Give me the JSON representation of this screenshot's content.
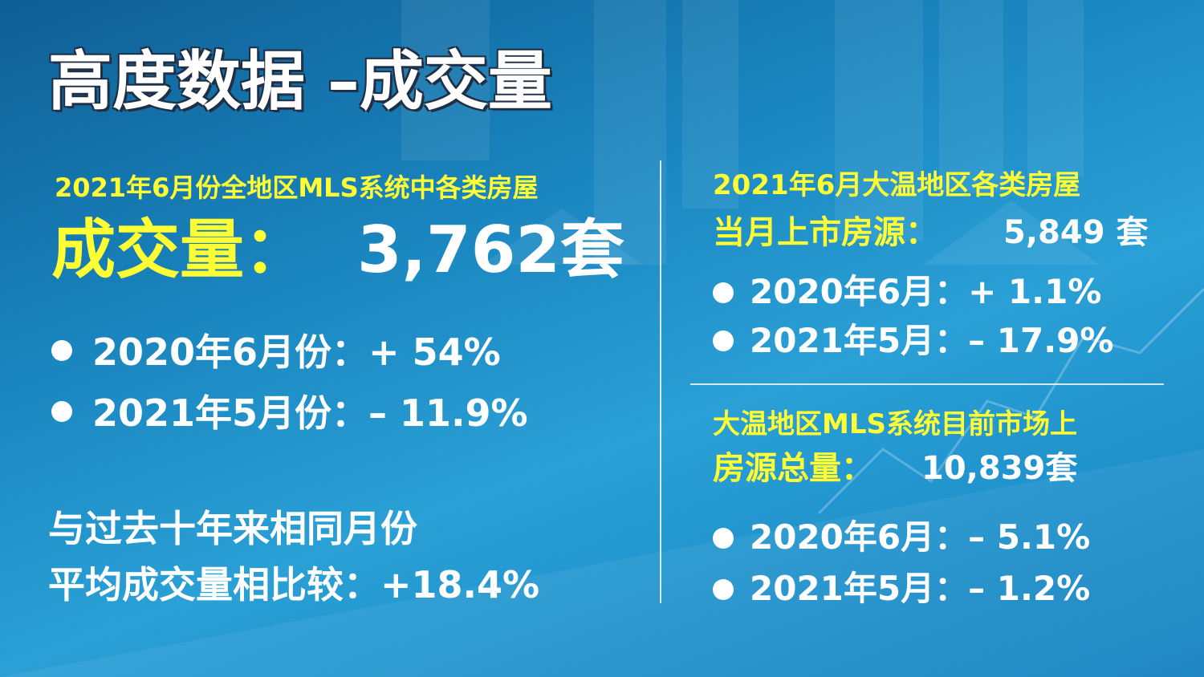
{
  "title": "高度数据 –成交量",
  "left": {
    "heading": "2021年6月份全地区MLS系统中各类房屋",
    "label": "成交量：",
    "value": "3,762套",
    "bullets": [
      "2020年6月份：+ 54%",
      "2021年5月份：– 11.9%"
    ],
    "note": [
      "与过去十年来相同月份",
      "平均成交量相比较：+18.4%"
    ]
  },
  "right_top": {
    "heading": "2021年6月大温地区各类房屋",
    "label": "当月上市房源：",
    "value": "5,849 套",
    "bullets": [
      "2020年6月：+ 1.1%",
      "2021年5月：– 17.9%"
    ]
  },
  "right_bottom": {
    "heading": "大温地区MLS系统目前市场上",
    "label": "房源总量：",
    "value": "10,839套",
    "bullets": [
      "2020年6月：– 5.1%",
      "2021年5月：– 1.2%"
    ]
  }
}
